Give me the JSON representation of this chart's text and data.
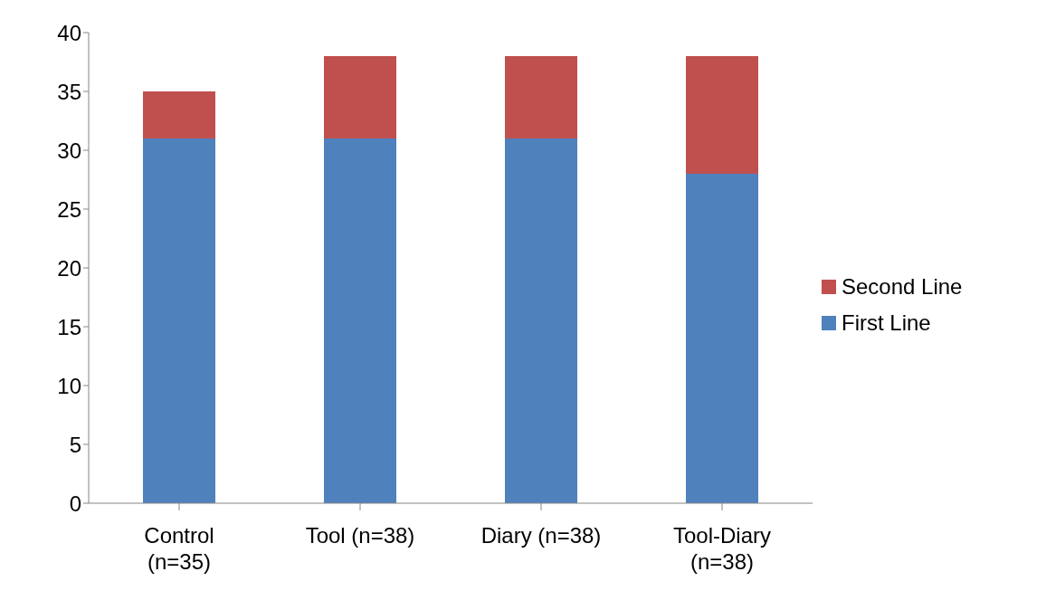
{
  "chart_data": {
    "type": "bar",
    "stacked": true,
    "categories": [
      "Control (n=35)",
      "Tool (n=38)",
      "Diary (n=38)",
      "Tool-Diary (n=38)"
    ],
    "series": [
      {
        "name": "First Line",
        "color": "#4f81bd",
        "values": [
          31,
          31,
          31,
          28
        ]
      },
      {
        "name": "Second Line",
        "color": "#c0504d",
        "values": [
          4,
          7,
          7,
          10
        ]
      }
    ],
    "ylim": [
      0,
      40
    ],
    "yticks": [
      0,
      5,
      10,
      15,
      20,
      25,
      30,
      35,
      40
    ],
    "grid": false,
    "legend": "right"
  }
}
